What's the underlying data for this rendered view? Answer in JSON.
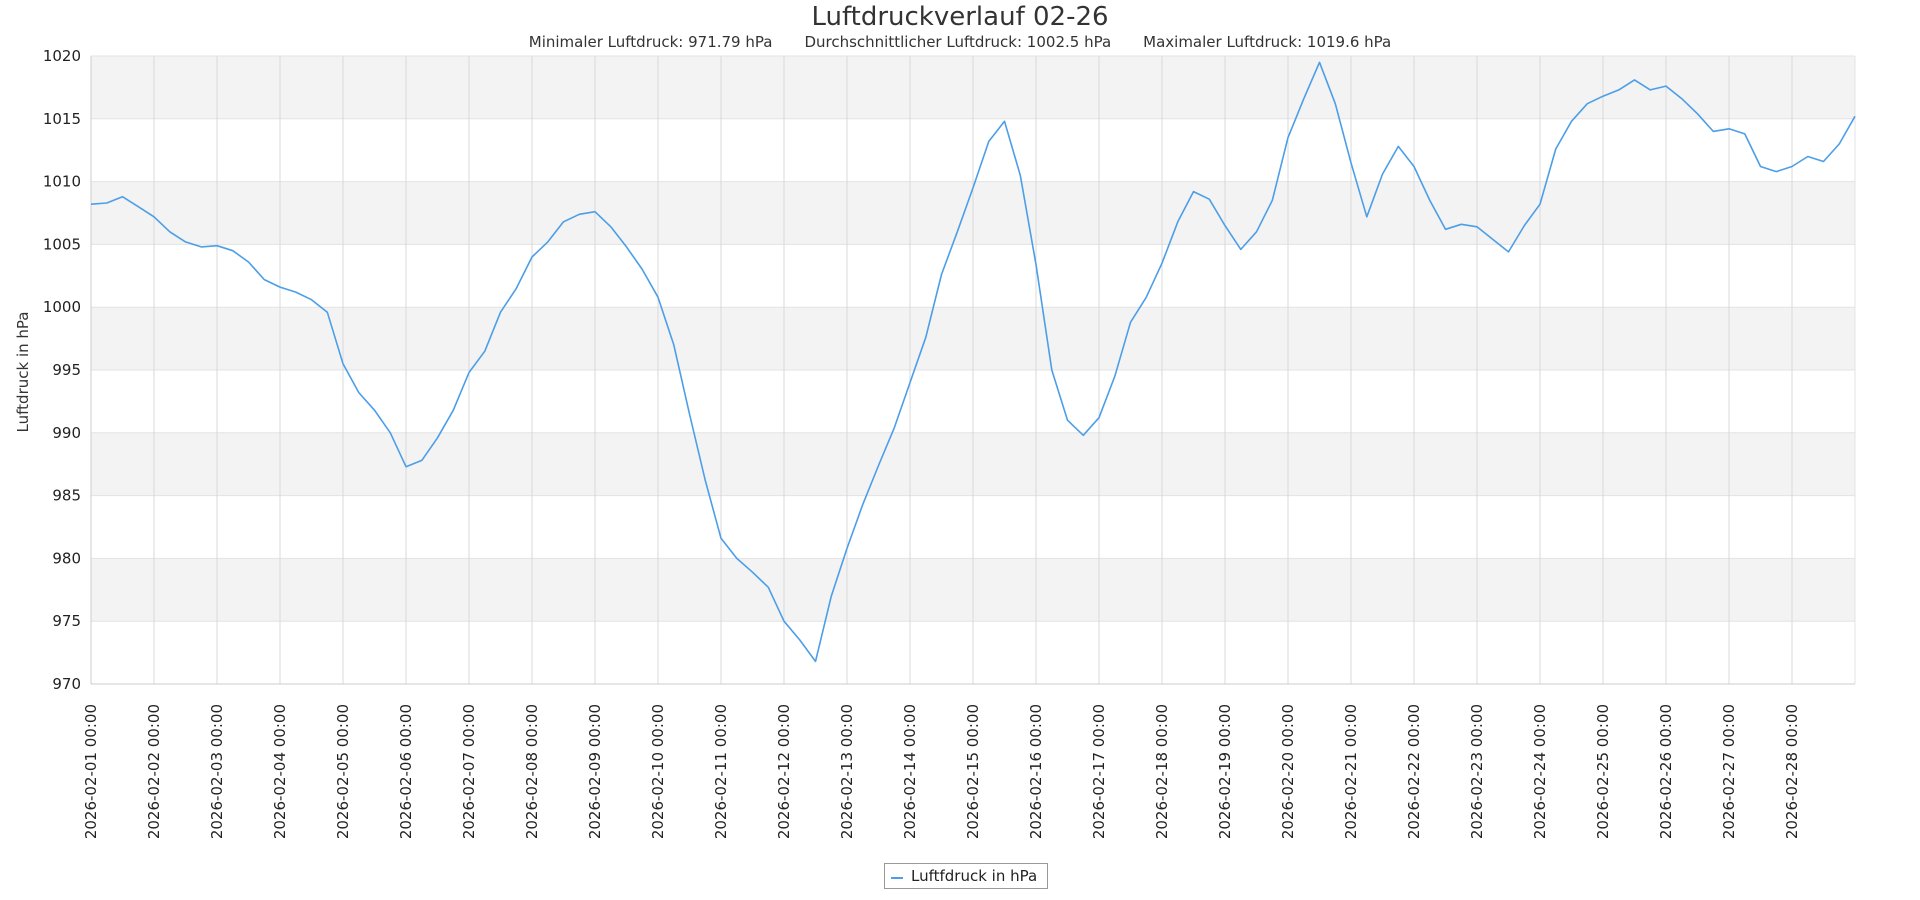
{
  "chart_data": {
    "type": "line",
    "title": "Luftdruckverlauf 02-26",
    "subtitle": {
      "min_label": "Minimaler Luftdruck: 971.79 hPa",
      "avg_label": "Durchschnittlicher Luftdruck: 1002.5 hPa",
      "max_label": "Maximaler Luftdruck: 1019.6 hPa"
    },
    "ylabel": "Luftdruck in hPa",
    "xlabel": "",
    "ylim": [
      970,
      1020
    ],
    "yticks": [
      970,
      975,
      980,
      985,
      990,
      995,
      1000,
      1005,
      1010,
      1015,
      1020
    ],
    "x_start": "2026-02-01 00:00",
    "x_end": "2026-03-01 00:00",
    "xticks": [
      "2026-02-01 00:00",
      "2026-02-02 00:00",
      "2026-02-03 00:00",
      "2026-02-04 00:00",
      "2026-02-05 00:00",
      "2026-02-06 00:00",
      "2026-02-07 00:00",
      "2026-02-08 00:00",
      "2026-02-09 00:00",
      "2026-02-10 00:00",
      "2026-02-11 00:00",
      "2026-02-12 00:00",
      "2026-02-13 00:00",
      "2026-02-14 00:00",
      "2026-02-15 00:00",
      "2026-02-16 00:00",
      "2026-02-17 00:00",
      "2026-02-18 00:00",
      "2026-02-19 00:00",
      "2026-02-20 00:00",
      "2026-02-21 00:00",
      "2026-02-22 00:00",
      "2026-02-23 00:00",
      "2026-02-24 00:00",
      "2026-02-25 00:00",
      "2026-02-26 00:00",
      "2026-02-27 00:00",
      "2026-02-28 00:00"
    ],
    "grid": true,
    "alternate_bands": true,
    "legend_position": "bottom-center",
    "series": [
      {
        "name": "Luftfdruck in hPa",
        "color": "#4c9ee8",
        "points": [
          [
            "2026-02-01 00:00",
            1008.2
          ],
          [
            "2026-02-01 06:00",
            1008.3
          ],
          [
            "2026-02-01 12:00",
            1008.8
          ],
          [
            "2026-02-01 18:00",
            1008.0
          ],
          [
            "2026-02-02 00:00",
            1007.2
          ],
          [
            "2026-02-02 06:00",
            1006.0
          ],
          [
            "2026-02-02 12:00",
            1005.2
          ],
          [
            "2026-02-02 18:00",
            1004.8
          ],
          [
            "2026-02-03 00:00",
            1004.9
          ],
          [
            "2026-02-03 06:00",
            1004.5
          ],
          [
            "2026-02-03 12:00",
            1003.6
          ],
          [
            "2026-02-03 18:00",
            1002.2
          ],
          [
            "2026-02-04 00:00",
            1001.6
          ],
          [
            "2026-02-04 06:00",
            1001.2
          ],
          [
            "2026-02-04 12:00",
            1000.6
          ],
          [
            "2026-02-04 18:00",
            999.6
          ],
          [
            "2026-02-05 00:00",
            995.5
          ],
          [
            "2026-02-05 06:00",
            993.2
          ],
          [
            "2026-02-05 12:00",
            991.8
          ],
          [
            "2026-02-05 18:00",
            990.0
          ],
          [
            "2026-02-06 00:00",
            987.3
          ],
          [
            "2026-02-06 06:00",
            987.8
          ],
          [
            "2026-02-06 12:00",
            989.6
          ],
          [
            "2026-02-06 18:00",
            991.8
          ],
          [
            "2026-02-07 00:00",
            994.8
          ],
          [
            "2026-02-07 06:00",
            996.5
          ],
          [
            "2026-02-07 12:00",
            999.6
          ],
          [
            "2026-02-07 18:00",
            1001.5
          ],
          [
            "2026-02-08 00:00",
            1004.0
          ],
          [
            "2026-02-08 06:00",
            1005.2
          ],
          [
            "2026-02-08 12:00",
            1006.8
          ],
          [
            "2026-02-08 18:00",
            1007.4
          ],
          [
            "2026-02-09 00:00",
            1007.6
          ],
          [
            "2026-02-09 06:00",
            1006.4
          ],
          [
            "2026-02-09 12:00",
            1004.8
          ],
          [
            "2026-02-09 18:00",
            1003.0
          ],
          [
            "2026-02-10 00:00",
            1000.8
          ],
          [
            "2026-02-10 06:00",
            997.0
          ],
          [
            "2026-02-10 12:00",
            991.5
          ],
          [
            "2026-02-10 18:00",
            986.2
          ],
          [
            "2026-02-11 00:00",
            981.6
          ],
          [
            "2026-02-11 06:00",
            980.0
          ],
          [
            "2026-02-11 12:00",
            978.9
          ],
          [
            "2026-02-11 18:00",
            977.7
          ],
          [
            "2026-02-12 00:00",
            975.0
          ],
          [
            "2026-02-12 06:00",
            973.5
          ],
          [
            "2026-02-12 12:00",
            971.8
          ],
          [
            "2026-02-12 18:00",
            977.0
          ],
          [
            "2026-02-13 00:00",
            980.8
          ],
          [
            "2026-02-13 06:00",
            984.3
          ],
          [
            "2026-02-13 12:00",
            987.4
          ],
          [
            "2026-02-13 18:00",
            990.4
          ],
          [
            "2026-02-14 00:00",
            994.0
          ],
          [
            "2026-02-14 06:00",
            997.6
          ],
          [
            "2026-02-14 12:00",
            1002.6
          ],
          [
            "2026-02-14 18:00",
            1006.0
          ],
          [
            "2026-02-15 00:00",
            1009.5
          ],
          [
            "2026-02-15 06:00",
            1013.2
          ],
          [
            "2026-02-15 12:00",
            1014.8
          ],
          [
            "2026-02-15 18:00",
            1010.5
          ],
          [
            "2026-02-16 00:00",
            1003.4
          ],
          [
            "2026-02-16 06:00",
            995.0
          ],
          [
            "2026-02-16 12:00",
            991.0
          ],
          [
            "2026-02-16 18:00",
            989.8
          ],
          [
            "2026-02-17 00:00",
            991.2
          ],
          [
            "2026-02-17 06:00",
            994.5
          ],
          [
            "2026-02-17 12:00",
            998.8
          ],
          [
            "2026-02-17 18:00",
            1000.8
          ],
          [
            "2026-02-18 00:00",
            1003.5
          ],
          [
            "2026-02-18 06:00",
            1006.8
          ],
          [
            "2026-02-18 12:00",
            1009.2
          ],
          [
            "2026-02-18 18:00",
            1008.6
          ],
          [
            "2026-02-19 00:00",
            1006.5
          ],
          [
            "2026-02-19 06:00",
            1004.6
          ],
          [
            "2026-02-19 12:00",
            1006.0
          ],
          [
            "2026-02-19 18:00",
            1008.5
          ],
          [
            "2026-02-20 00:00",
            1013.5
          ],
          [
            "2026-02-20 06:00",
            1016.6
          ],
          [
            "2026-02-20 12:00",
            1019.5
          ],
          [
            "2026-02-20 18:00",
            1016.2
          ],
          [
            "2026-02-21 00:00",
            1011.5
          ],
          [
            "2026-02-21 06:00",
            1007.2
          ],
          [
            "2026-02-21 12:00",
            1010.6
          ],
          [
            "2026-02-21 18:00",
            1012.8
          ],
          [
            "2026-02-22 00:00",
            1011.2
          ],
          [
            "2026-02-22 06:00",
            1008.5
          ],
          [
            "2026-02-22 12:00",
            1006.2
          ],
          [
            "2026-02-22 18:00",
            1006.6
          ],
          [
            "2026-02-23 00:00",
            1006.4
          ],
          [
            "2026-02-23 06:00",
            1005.4
          ],
          [
            "2026-02-23 12:00",
            1004.4
          ],
          [
            "2026-02-23 18:00",
            1006.5
          ],
          [
            "2026-02-24 00:00",
            1008.2
          ],
          [
            "2026-02-24 06:00",
            1012.6
          ],
          [
            "2026-02-24 12:00",
            1014.8
          ],
          [
            "2026-02-24 18:00",
            1016.2
          ],
          [
            "2026-02-25 00:00",
            1016.8
          ],
          [
            "2026-02-25 06:00",
            1017.3
          ],
          [
            "2026-02-25 12:00",
            1018.1
          ],
          [
            "2026-02-25 18:00",
            1017.3
          ],
          [
            "2026-02-26 00:00",
            1017.6
          ],
          [
            "2026-02-26 06:00",
            1016.6
          ],
          [
            "2026-02-26 12:00",
            1015.4
          ],
          [
            "2026-02-26 18:00",
            1014.0
          ],
          [
            "2026-02-27 00:00",
            1014.2
          ],
          [
            "2026-02-27 06:00",
            1013.8
          ],
          [
            "2026-02-27 12:00",
            1011.2
          ],
          [
            "2026-02-27 18:00",
            1010.8
          ],
          [
            "2026-02-28 00:00",
            1011.2
          ],
          [
            "2026-02-28 06:00",
            1012.0
          ],
          [
            "2026-02-28 12:00",
            1011.6
          ],
          [
            "2026-02-28 18:00",
            1013.0
          ],
          [
            "2026-03-01 00:00",
            1015.2
          ]
        ]
      }
    ]
  },
  "legend": {
    "label": "Luftfdruck in hPa"
  }
}
